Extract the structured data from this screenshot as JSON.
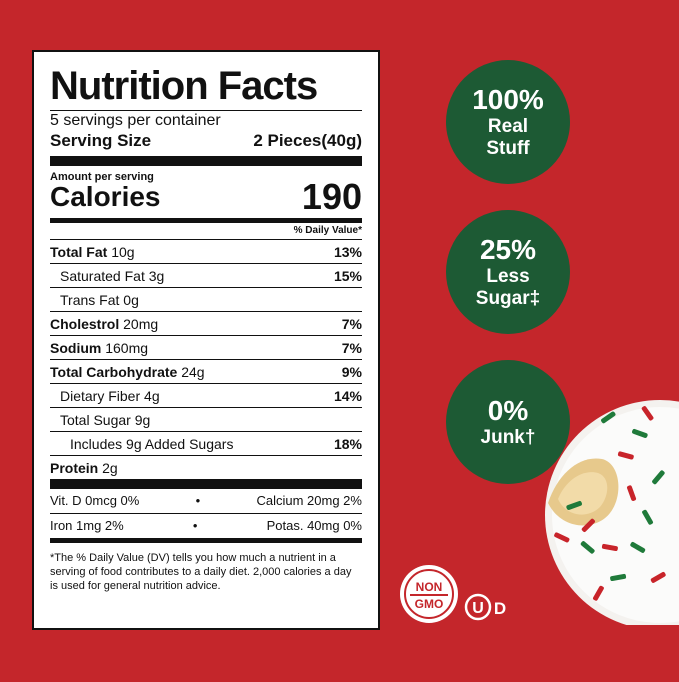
{
  "nutrition": {
    "title": "Nutrition Facts",
    "servings": "5 servings per container",
    "serving_size_label": "Serving Size",
    "serving_size_value": "2 Pieces(40g)",
    "amount_per_serving": "Amount per serving",
    "calories_label": "Calories",
    "calories_value": "190",
    "dv_header": "% Daily Value*",
    "rows": [
      {
        "name": "Total Fat",
        "amount": "10g",
        "pct": "13%"
      },
      {
        "name": "Saturated Fat",
        "amount": "3g",
        "pct": "15%"
      },
      {
        "name": "Trans Fat",
        "amount": "0g",
        "pct": ""
      },
      {
        "name": "Cholestrol",
        "amount": "20mg",
        "pct": "7%"
      },
      {
        "name": "Sodium",
        "amount": "160mg",
        "pct": "7%"
      },
      {
        "name": "Total Carbohydrate",
        "amount": "24g",
        "pct": "9%"
      },
      {
        "name": "Dietary Fiber",
        "amount": "4g",
        "pct": "14%"
      },
      {
        "name": "Total Sugar",
        "amount": "9g",
        "pct": ""
      },
      {
        "name": "Includes 9g Added Sugars",
        "amount": "",
        "pct": "18%"
      },
      {
        "name": "Protein",
        "amount": "2g",
        "pct": ""
      }
    ],
    "vitamins": [
      {
        "left": "Vit. D 0mcg 0%",
        "right": "Calcium 20mg 2%"
      },
      {
        "left": "Iron 1mg 2%",
        "right": "Potas. 40mg 0%"
      }
    ],
    "bullet": "•",
    "footnote": "*The % Daily Value (DV) tells you how much a nutrient in a serving of food contributes to a daily diet. 2,000 calories a day is used for general nutrition advice."
  },
  "badges": [
    {
      "big": "100%",
      "line1": "Real",
      "line2": "Stuff"
    },
    {
      "big": "25%",
      "line1": "Less",
      "line2": "Sugar‡"
    },
    {
      "big": "0%",
      "line1": "Junk†",
      "line2": ""
    }
  ],
  "certs": {
    "non_gmo_top": "NON",
    "non_gmo_bottom": "GMO",
    "kosher_letter": "U",
    "kosher_suffix": "D"
  },
  "colors": {
    "background": "#c4262b",
    "badge_green": "#1d5a34",
    "panel": "#ffffff"
  }
}
